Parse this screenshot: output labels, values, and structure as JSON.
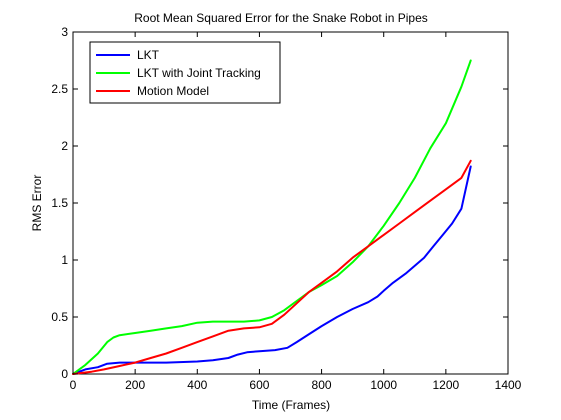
{
  "chart_data": {
    "type": "line",
    "title": "Root Mean Squared Error for the Snake Robot in Pipes",
    "xlabel": "Time (Frames)",
    "ylabel": "RMS Error",
    "xlim": [
      0,
      1400
    ],
    "ylim": [
      0,
      3
    ],
    "xticks": [
      "0",
      "200",
      "400",
      "600",
      "800",
      "1000",
      "1200",
      "1400"
    ],
    "yticks": [
      "0",
      "0.5",
      "1",
      "1.5",
      "2",
      "2.5",
      "3"
    ],
    "grid": false,
    "legend_position": "top-left",
    "series": [
      {
        "name": "LKT",
        "color": "#0000ff",
        "x": [
          0,
          40,
          80,
          110,
          150,
          200,
          300,
          400,
          450,
          500,
          530,
          560,
          600,
          650,
          690,
          720,
          760,
          800,
          850,
          900,
          950,
          980,
          1000,
          1030,
          1070,
          1100,
          1130,
          1160,
          1190,
          1220,
          1250,
          1280
        ],
        "y": [
          0,
          0.04,
          0.06,
          0.09,
          0.1,
          0.1,
          0.1,
          0.11,
          0.12,
          0.14,
          0.17,
          0.19,
          0.2,
          0.21,
          0.23,
          0.28,
          0.35,
          0.42,
          0.5,
          0.57,
          0.63,
          0.68,
          0.73,
          0.8,
          0.88,
          0.95,
          1.02,
          1.12,
          1.22,
          1.32,
          1.45,
          1.82
        ]
      },
      {
        "name": "LKT with Joint Tracking",
        "color": "#00ff00",
        "x": [
          0,
          40,
          80,
          110,
          130,
          150,
          200,
          250,
          300,
          350,
          400,
          450,
          500,
          550,
          600,
          640,
          680,
          720,
          760,
          800,
          850,
          900,
          950,
          1000,
          1050,
          1100,
          1150,
          1200,
          1250,
          1280
        ],
        "y": [
          0,
          0.08,
          0.18,
          0.28,
          0.32,
          0.34,
          0.36,
          0.38,
          0.4,
          0.42,
          0.45,
          0.46,
          0.46,
          0.46,
          0.47,
          0.5,
          0.56,
          0.64,
          0.72,
          0.78,
          0.86,
          0.98,
          1.12,
          1.3,
          1.5,
          1.72,
          1.98,
          2.2,
          2.52,
          2.75
        ]
      },
      {
        "name": "Motion Model",
        "color": "#ff0000",
        "x": [
          0,
          60,
          100,
          150,
          200,
          250,
          300,
          350,
          400,
          450,
          500,
          550,
          600,
          640,
          680,
          720,
          760,
          800,
          850,
          900,
          950,
          1000,
          1050,
          1100,
          1150,
          1200,
          1250,
          1280
        ],
        "y": [
          0,
          0.02,
          0.04,
          0.07,
          0.1,
          0.14,
          0.18,
          0.23,
          0.28,
          0.33,
          0.38,
          0.4,
          0.41,
          0.44,
          0.52,
          0.62,
          0.72,
          0.8,
          0.9,
          1.02,
          1.12,
          1.22,
          1.32,
          1.42,
          1.52,
          1.62,
          1.72,
          1.87
        ]
      }
    ]
  }
}
